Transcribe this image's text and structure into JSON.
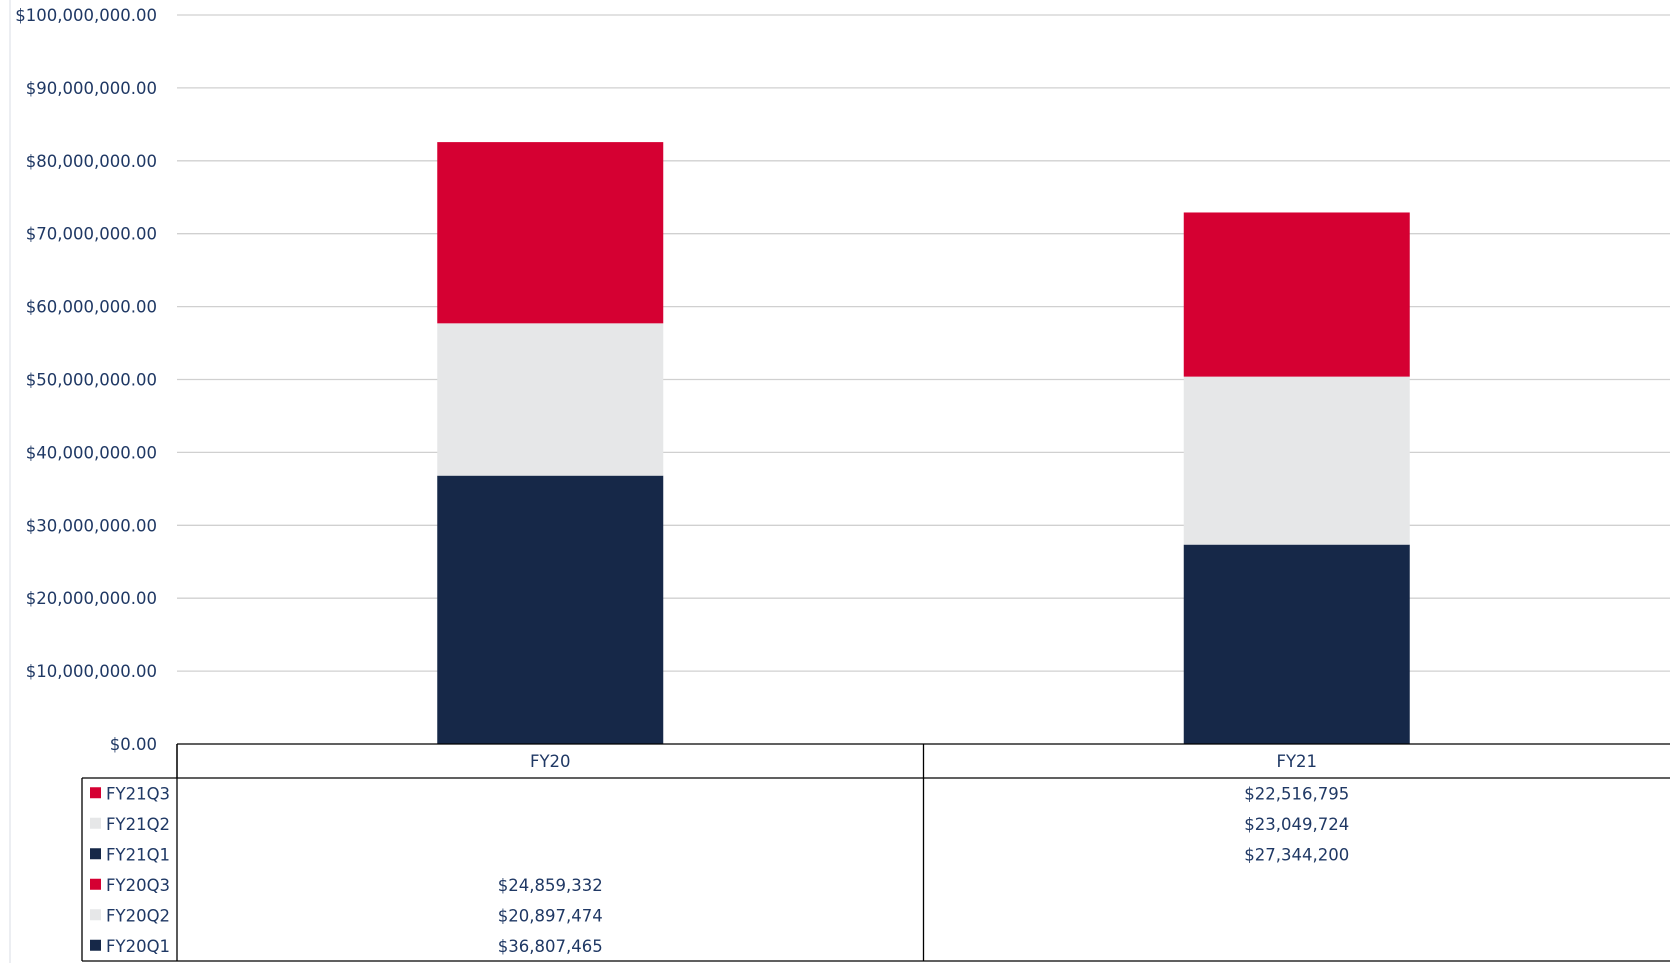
{
  "chart_data": {
    "type": "bar",
    "stacked": true,
    "title": "",
    "xlabel": "",
    "ylabel": "",
    "categories": [
      "FY20",
      "FY21"
    ],
    "ylim": [
      0,
      100000000
    ],
    "ytick_labels": [
      "$0.00",
      "$10,000,000.00",
      "$20,000,000.00",
      "$30,000,000.00",
      "$40,000,000.00",
      "$50,000,000.00",
      "$60,000,000.00",
      "$70,000,000.00",
      "$80,000,000.00",
      "$90,000,000.00",
      "$100,000,000.00"
    ],
    "grid": true,
    "legend": "data-table",
    "series": [
      {
        "name": "FY20Q1",
        "color": "#162848",
        "values": [
          36807465,
          null
        ],
        "labels": [
          "$36,807,465",
          ""
        ]
      },
      {
        "name": "FY20Q2",
        "color": "#e6e7e8",
        "values": [
          20897474,
          null
        ],
        "labels": [
          "$20,897,474",
          ""
        ]
      },
      {
        "name": "FY20Q3",
        "color": "#d50032",
        "values": [
          24859332,
          null
        ],
        "labels": [
          "$24,859,332",
          ""
        ]
      },
      {
        "name": "FY21Q1",
        "color": "#162848",
        "values": [
          null,
          27344200
        ],
        "labels": [
          "",
          "$27,344,200"
        ]
      },
      {
        "name": "FY21Q2",
        "color": "#e6e7e8",
        "values": [
          null,
          23049724
        ],
        "labels": [
          "",
          "$23,049,724"
        ]
      },
      {
        "name": "FY21Q3",
        "color": "#d50032",
        "values": [
          null,
          22516795
        ],
        "labels": [
          "",
          "$22,516,795"
        ]
      }
    ]
  }
}
